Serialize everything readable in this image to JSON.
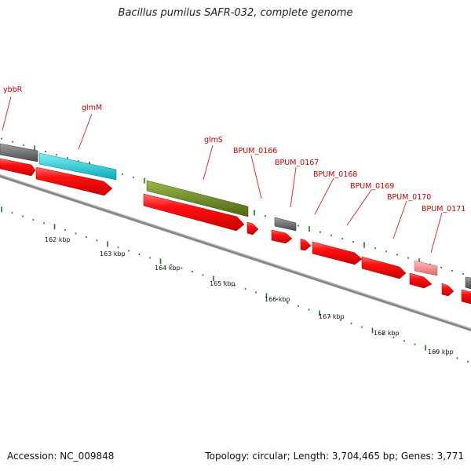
{
  "title": "Bacillus pumilus SAFR-032, complete genome",
  "accession": "Accession: NC_009848",
  "summary": "Topology: circular; Length: 3,704,465 bp; Genes: 3,771",
  "colors": {
    "cds": "#ff0000",
    "gene_label": "#d00000",
    "backbone": "#8a8a8a",
    "tick": "#1a7a1a",
    "gray_feature": "#6e6e6e",
    "glmM_feature": "#12c8d4",
    "glmS_feature": "#6e8a22",
    "BPUM_0171_feature": "#f28a8a"
  },
  "gene_labels": [
    "ybbR",
    "glmM",
    "glmS",
    "BPUM_0166",
    "BPUM_0167",
    "BPUM_0168",
    "BPUM_0169",
    "BPUM_0170",
    "BPUM_0171"
  ],
  "scale_labels": [
    "162 kbp",
    "163 kbp",
    "164 kbp",
    "165 kbp",
    "166 kbp",
    "167 kbp",
    "168 kbp",
    "169 kbp"
  ]
}
